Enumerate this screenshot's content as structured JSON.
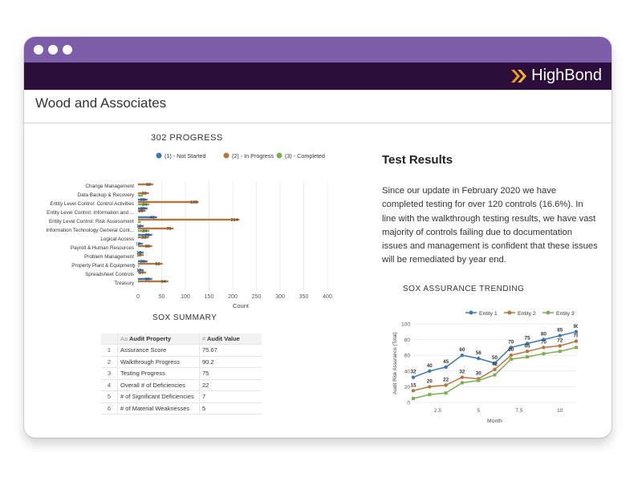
{
  "window": {
    "brand": "HighBond",
    "org_name": "Wood and Associates"
  },
  "progress_chart": {
    "title": "302 PROGRESS",
    "legend": [
      "(1) - Not Started",
      "(2) - In Progress",
      "(3) - Completed"
    ],
    "colors": {
      "not_started": "#3a78b8",
      "in_progress": "#b8753b",
      "completed": "#7cae4f"
    },
    "xlabel": "Count",
    "xticks": [
      "0",
      "50",
      "100",
      "150",
      "200",
      "250",
      "300",
      "350",
      "400"
    ],
    "xmax": 400
  },
  "chart_data": [
    {
      "type": "bar",
      "orientation": "horizontal",
      "title": "302 PROGRESS",
      "xlabel": "Count",
      "xlim": [
        0,
        400
      ],
      "categories": [
        "Change Management",
        "Data Backup & Recovery",
        "Entity Level Control: Control Activities",
        "Entity Level Control: Information and ...",
        "Entity Level Control: Risk Assessment",
        "Information Technology General Cont...",
        "Logical Access",
        "Payroll & Human Resources",
        "Problem Management",
        "Property Plant & Equipment",
        "Spreadsheet Controls",
        "Treasury"
      ],
      "series": [
        {
          "name": "(1) - Not Started",
          "values": [
            null,
            null,
            20,
            20,
            40,
            12,
            30,
            10,
            12,
            20,
            12,
            30
          ],
          "labels": [
            "",
            "",
            "20",
            "20",
            "40",
            "12",
            "30",
            "10",
            "12",
            "20",
            "12",
            "30"
          ]
        },
        {
          "name": "(2) - In Progress",
          "values": [
            32,
            23,
            128,
            16,
            214,
            75,
            23,
            30,
            12,
            52,
            17,
            64
          ],
          "labels": [
            "32",
            "23",
            "128",
            "16",
            "214",
            "75",
            "23",
            "30",
            "12",
            "52",
            "17",
            "64"
          ]
        },
        {
          "name": "(3) - Completed",
          "values": [
            null,
            10,
            24,
            null,
            6,
            24,
            null,
            null,
            null,
            2,
            null,
            null
          ],
          "labels": [
            "",
            "",
            "24",
            "",
            "",
            "24",
            "",
            "",
            "",
            "2",
            "",
            ""
          ]
        }
      ]
    },
    {
      "type": "line",
      "title": "SOX ASSURANCE TRENDING",
      "xlabel": "Month",
      "ylabel": "Audit Risk Assurance (Total)",
      "x": [
        1,
        2,
        3,
        4,
        5,
        6,
        7,
        8,
        9,
        10,
        11
      ],
      "xlim": [
        1,
        11
      ],
      "ylim": [
        0,
        100
      ],
      "xticks": [
        "2.5",
        "5",
        "7.5",
        "10"
      ],
      "yticks": [
        "0",
        "20",
        "40",
        "60",
        "80",
        "100"
      ],
      "series": [
        {
          "name": "Entity 1",
          "values": [
            32,
            40,
            45,
            60,
            56,
            50,
            70,
            75,
            80,
            85,
            90
          ]
        },
        {
          "name": "Entity 2",
          "values": [
            15,
            20,
            22,
            32,
            30,
            42,
            60,
            65,
            70,
            72,
            78
          ]
        },
        {
          "name": "Entity 3",
          "values": [
            5,
            10,
            12,
            25,
            28,
            35,
            55,
            58,
            62,
            65,
            70
          ]
        }
      ],
      "point_labels": [
        "32",
        "40",
        "45",
        "60",
        "56",
        "50",
        "70",
        "75",
        "80",
        "85",
        "90",
        "15",
        "20",
        "22",
        "32",
        "30",
        "42",
        "60",
        "65",
        "70",
        "72",
        "78"
      ],
      "colors": [
        "#3a78b8",
        "#b8753b",
        "#7cae4f"
      ],
      "legend": "top"
    }
  ],
  "sox_summary": {
    "title": "SOX SUMMARY",
    "columns": [
      "Audit Property",
      "Audit Value"
    ],
    "col_icons": [
      "Aa",
      "#"
    ],
    "rows": [
      {
        "idx": "1",
        "property": "Assurance Score",
        "value": "75.67"
      },
      {
        "idx": "2",
        "property": "Walkthrough Progress",
        "value": "90.2"
      },
      {
        "idx": "3",
        "property": "Testing Progress",
        "value": "75"
      },
      {
        "idx": "4",
        "property": "Overall # of Deficiencies",
        "value": "22"
      },
      {
        "idx": "5",
        "property": "# of Significant Deficiencies",
        "value": "7"
      },
      {
        "idx": "6",
        "property": "# of Material Weaknesses",
        "value": "5"
      }
    ]
  },
  "test_results": {
    "title": "Test Results",
    "body": "Since our update in February 2020  we have completed testing for over 120 controls (16.6%). In line with the walkthrough testing results, we have vast majority of controls failing due to documentation issues and management is confident that these issues will be remediated by year end."
  },
  "trend_chart": {
    "title": "SOX ASSURANCE TRENDING",
    "legend": [
      "Entity 1",
      "Entity 2",
      "Entity 3"
    ]
  }
}
